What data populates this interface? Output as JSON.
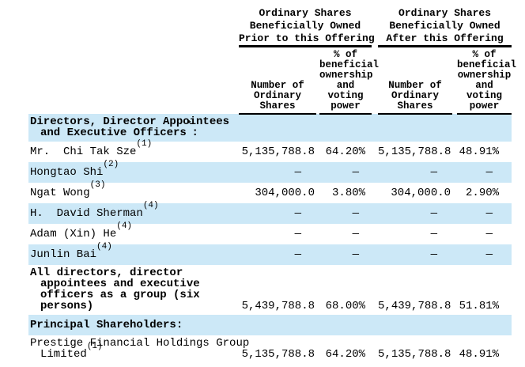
{
  "document_title": "Beneficial Ownership Table",
  "colors": {
    "row_highlight": "#cce8f7",
    "text": "#000000",
    "rule": "#000000"
  },
  "header": {
    "groups": [
      {
        "title": "Ordinary Shares\nBeneficially Owned\nPrior to this Offering",
        "columns": [
          "Number of\nOrdinary\nShares",
          "% of\nbeneficial\nownership\nand\nvoting\npower"
        ]
      },
      {
        "title": "Ordinary Shares\nBeneficially Owned\nAfter this Offering",
        "columns": [
          "Number of\nOrdinary\nShares",
          "% of\nbeneficial\nownership\nand\nvoting\npower"
        ]
      }
    ]
  },
  "rows": [
    {
      "type": "section",
      "shaded": true,
      "lines": [
        [
          {
            "text": "Directors, Director Appointees"
          }
        ],
        [
          {
            "text": "and Executive Officers"
          },
          {
            "sup": "*"
          },
          {
            "text": ":"
          }
        ]
      ],
      "values": [
        "",
        "",
        "",
        ""
      ]
    },
    {
      "type": "data",
      "shaded": false,
      "lines": [
        [
          {
            "text": "Mr.  Chi Tak Sze"
          },
          {
            "sup": "(1)"
          }
        ]
      ],
      "values": [
        "5,135,788.8",
        "64.20%",
        "5,135,788.8",
        "48.91%"
      ]
    },
    {
      "type": "data",
      "shaded": true,
      "lines": [
        [
          {
            "text": "Hongtao Shi"
          },
          {
            "sup": "(2)"
          }
        ]
      ],
      "values": [
        "—",
        "—",
        "—",
        "—"
      ]
    },
    {
      "type": "data",
      "shaded": false,
      "lines": [
        [
          {
            "text": "Ngat Wong"
          },
          {
            "sup": "(3)"
          }
        ]
      ],
      "values": [
        "304,000.0",
        "3.80%",
        "304,000.0",
        "2.90%"
      ]
    },
    {
      "type": "data",
      "shaded": true,
      "lines": [
        [
          {
            "text": "H.  David Sherman"
          },
          {
            "sup": "(4)"
          }
        ]
      ],
      "values": [
        "—",
        "—",
        "—",
        "—"
      ]
    },
    {
      "type": "data",
      "shaded": false,
      "lines": [
        [
          {
            "text": "Adam (Xin) He"
          },
          {
            "sup": "(4)"
          }
        ]
      ],
      "values": [
        "—",
        "—",
        "—",
        "—"
      ]
    },
    {
      "type": "data",
      "shaded": true,
      "lines": [
        [
          {
            "text": "Junlin Bai"
          },
          {
            "sup": "(4)"
          }
        ]
      ],
      "values": [
        "—",
        "—",
        "—",
        "—"
      ]
    },
    {
      "type": "group-total",
      "shaded": false,
      "lines": [
        [
          {
            "text": "All directors, director"
          }
        ],
        [
          {
            "text": "appointees and executive"
          }
        ],
        [
          {
            "text": "officers as a group (six"
          }
        ],
        [
          {
            "text": "persons)"
          }
        ]
      ],
      "values": [
        "5,439,788.8",
        "68.00%",
        "5,439,788.8",
        "51.81%"
      ]
    },
    {
      "type": "section",
      "shaded": true,
      "lines": [
        [
          {
            "text": "Principal Shareholders:"
          }
        ]
      ],
      "values": [
        "",
        "",
        "",
        ""
      ]
    },
    {
      "type": "data",
      "shaded": false,
      "lines": [
        [
          {
            "text": "Prestige Financial Holdings Group"
          }
        ],
        [
          {
            "text": "Limited"
          },
          {
            "sup": "(1)"
          }
        ]
      ],
      "values": [
        "5,135,788.8",
        "64.20%",
        "5,135,788.8",
        "48.91%"
      ]
    }
  ]
}
